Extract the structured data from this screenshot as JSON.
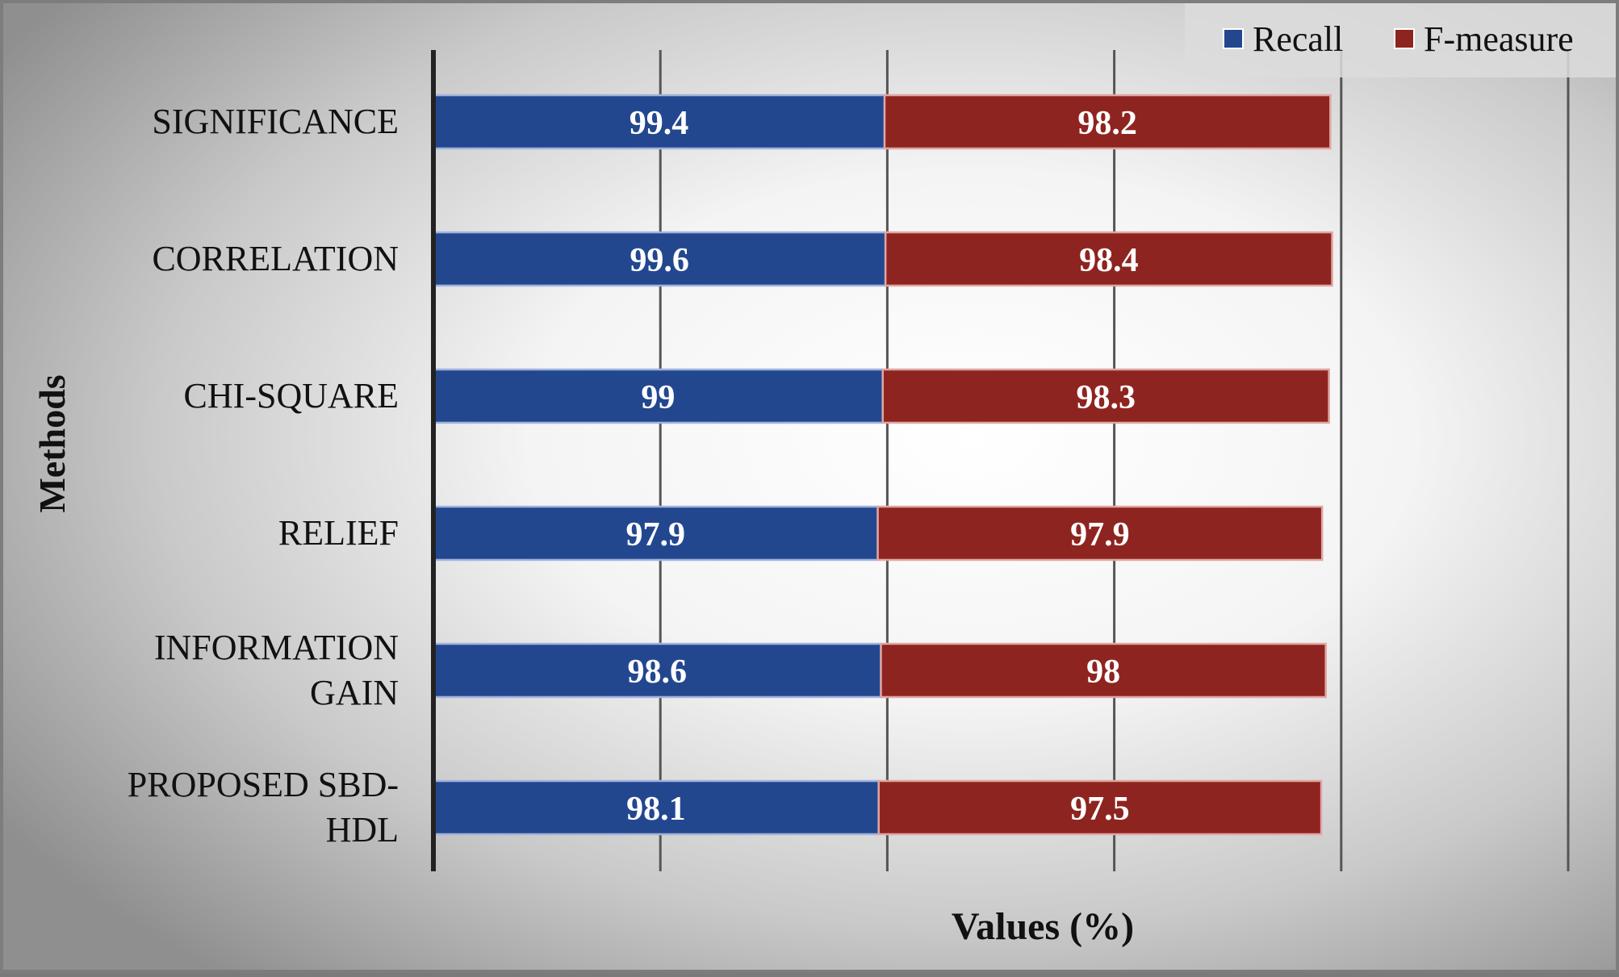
{
  "chart_data": {
    "type": "bar",
    "orientation": "horizontal",
    "stacked": true,
    "categories": [
      "SIGNIFICANCE",
      "CORRELATION",
      "CHI-SQUARE",
      "RELIEF",
      "INFORMATION GAIN",
      "PROPOSED SBD-HDL"
    ],
    "category_lines": [
      [
        "SIGNIFICANCE"
      ],
      [
        "CORRELATION"
      ],
      [
        "CHI-SQUARE"
      ],
      [
        "RELIEF"
      ],
      [
        "INFORMATION",
        "GAIN"
      ],
      [
        "PROPOSED SBD-",
        "HDL"
      ]
    ],
    "series": [
      {
        "name": "Recall",
        "color": "#23478f",
        "values": [
          99.4,
          99.6,
          99,
          97.9,
          98.6,
          98.1
        ]
      },
      {
        "name": "F-measure",
        "color": "#8e2420",
        "values": [
          98.2,
          98.4,
          98.3,
          97.9,
          98,
          97.5
        ]
      }
    ],
    "xlabel": "Values (%)",
    "ylabel": "Methods",
    "xlim": [
      0,
      250
    ],
    "xtick_step": 50,
    "grid": true,
    "legend_position": "top-right"
  }
}
